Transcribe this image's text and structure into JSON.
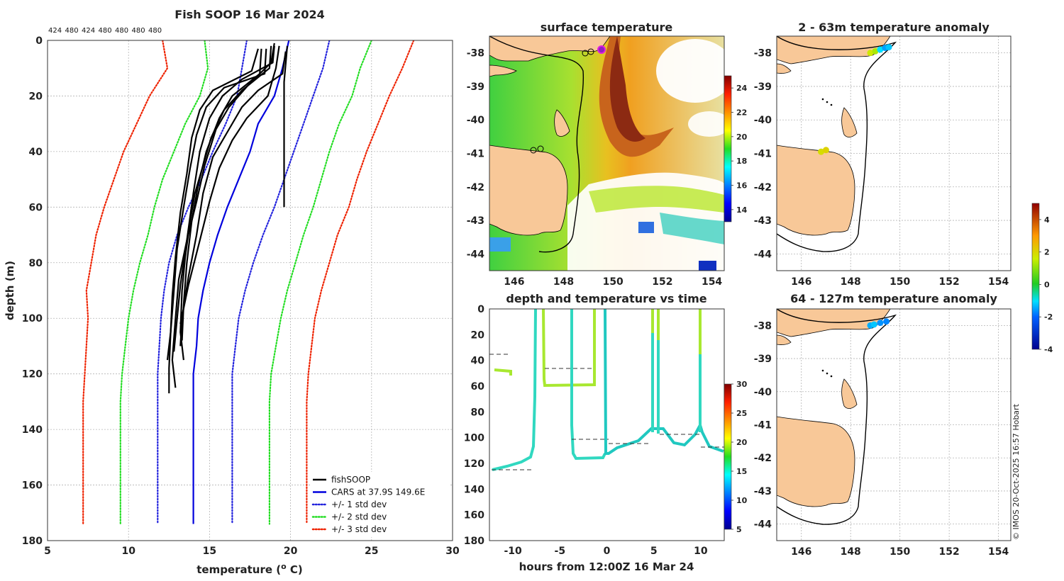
{
  "chart_data": [
    {
      "type": "line",
      "title": "Fish SOOP 16 Mar 2024",
      "top_labels": [
        "424",
        "480",
        "424",
        "480",
        "480",
        "480",
        "480"
      ],
      "xlabel": "temperature (",
      "xlabel_sup": "o",
      "xlabel_unit": " C)",
      "ylabel": "depth (m)",
      "xlim": [
        5,
        30
      ],
      "ylim": [
        180,
        0
      ],
      "xticks": [
        5,
        10,
        15,
        20,
        25,
        30
      ],
      "yticks": [
        0,
        20,
        40,
        60,
        80,
        100,
        120,
        140,
        160,
        180
      ],
      "legend": {
        "position": "bottom-right",
        "entries": [
          {
            "label": "fishSOOP",
            "color": "#000000",
            "style": "solid"
          },
          {
            "label": "CARS at 37.9S 149.6E",
            "color": "#0000dd",
            "style": "solid"
          },
          {
            "label": "+/- 1 std dev",
            "color": "#2222dd",
            "style": "dotted"
          },
          {
            "label": "+/- 2 std dev",
            "color": "#22dd22",
            "style": "dotted"
          },
          {
            "label": "+/- 3 std dev",
            "color": "#ee2200",
            "style": "dotted"
          }
        ]
      },
      "series": [
        {
          "name": "CARS",
          "color": "#0000dd",
          "style": "solid",
          "points": [
            [
              19.9,
              0
            ],
            [
              19.5,
              10
            ],
            [
              19.0,
              20
            ],
            [
              18.0,
              30
            ],
            [
              17.5,
              40
            ],
            [
              16.8,
              50
            ],
            [
              16.1,
              60
            ],
            [
              15.5,
              70
            ],
            [
              15.0,
              80
            ],
            [
              14.6,
              90
            ],
            [
              14.3,
              100
            ],
            [
              14.2,
              110
            ],
            [
              14.0,
              120
            ],
            [
              14.0,
              130
            ],
            [
              14.0,
              174
            ]
          ]
        },
        {
          "name": "+1 std",
          "color": "#2222dd",
          "style": "dotted",
          "points": [
            [
              22.4,
              0
            ],
            [
              22.0,
              10
            ],
            [
              21.4,
              20
            ],
            [
              20.8,
              30
            ],
            [
              20.2,
              40
            ],
            [
              19.6,
              50
            ],
            [
              19.0,
              60
            ],
            [
              18.3,
              70
            ],
            [
              17.7,
              80
            ],
            [
              17.2,
              90
            ],
            [
              16.8,
              100
            ],
            [
              16.6,
              110
            ],
            [
              16.4,
              120
            ],
            [
              16.4,
              130
            ],
            [
              16.4,
              174
            ]
          ]
        },
        {
          "name": "-1 std",
          "color": "#2222dd",
          "style": "dotted",
          "points": [
            [
              17.3,
              0
            ],
            [
              17.0,
              10
            ],
            [
              16.7,
              20
            ],
            [
              16.0,
              30
            ],
            [
              15.2,
              40
            ],
            [
              14.5,
              50
            ],
            [
              13.7,
              60
            ],
            [
              13.0,
              70
            ],
            [
              12.5,
              80
            ],
            [
              12.2,
              90
            ],
            [
              12.0,
              100
            ],
            [
              11.9,
              110
            ],
            [
              11.8,
              120
            ],
            [
              11.8,
              130
            ],
            [
              11.8,
              174
            ]
          ]
        },
        {
          "name": "+2 std",
          "color": "#22dd22",
          "style": "dotted",
          "points": [
            [
              25.0,
              0
            ],
            [
              24.3,
              10
            ],
            [
              23.8,
              20
            ],
            [
              23.0,
              30
            ],
            [
              22.4,
              40
            ],
            [
              21.9,
              50
            ],
            [
              21.4,
              60
            ],
            [
              20.8,
              70
            ],
            [
              20.3,
              80
            ],
            [
              19.8,
              90
            ],
            [
              19.4,
              100
            ],
            [
              19.1,
              110
            ],
            [
              18.8,
              120
            ],
            [
              18.7,
              130
            ],
            [
              18.7,
              174
            ]
          ]
        },
        {
          "name": "-2 std",
          "color": "#22dd22",
          "style": "dotted",
          "points": [
            [
              14.7,
              0
            ],
            [
              14.9,
              10
            ],
            [
              14.4,
              20
            ],
            [
              13.5,
              30
            ],
            [
              12.8,
              40
            ],
            [
              12.1,
              50
            ],
            [
              11.6,
              60
            ],
            [
              11.2,
              70
            ],
            [
              10.7,
              80
            ],
            [
              10.3,
              90
            ],
            [
              10.0,
              100
            ],
            [
              9.8,
              110
            ],
            [
              9.6,
              120
            ],
            [
              9.5,
              130
            ],
            [
              9.5,
              174
            ]
          ]
        },
        {
          "name": "+3 std",
          "color": "#ee2200",
          "style": "dotted",
          "points": [
            [
              27.6,
              0
            ],
            [
              26.9,
              10
            ],
            [
              26.1,
              20
            ],
            [
              25.4,
              30
            ],
            [
              24.7,
              40
            ],
            [
              24.1,
              50
            ],
            [
              23.6,
              60
            ],
            [
              22.9,
              70
            ],
            [
              22.4,
              80
            ],
            [
              21.9,
              90
            ],
            [
              21.5,
              100
            ],
            [
              21.3,
              110
            ],
            [
              21.1,
              120
            ],
            [
              21.0,
              130
            ],
            [
              21.0,
              174
            ]
          ]
        },
        {
          "name": "-3 std",
          "color": "#ee2200",
          "style": "dotted",
          "points": [
            [
              12.1,
              0
            ],
            [
              12.4,
              10
            ],
            [
              11.3,
              20
            ],
            [
              10.5,
              30
            ],
            [
              9.7,
              40
            ],
            [
              9.1,
              50
            ],
            [
              8.5,
              60
            ],
            [
              8.0,
              70
            ],
            [
              7.7,
              80
            ],
            [
              7.4,
              90
            ],
            [
              7.5,
              100
            ],
            [
              7.4,
              110
            ],
            [
              7.3,
              120
            ],
            [
              7.2,
              130
            ],
            [
              7.2,
              174
            ]
          ]
        },
        {
          "name": "fishSOOP-1",
          "color": "#000000",
          "style": "solid",
          "points": [
            [
              19.8,
              2
            ],
            [
              19.6,
              15
            ],
            [
              19.6,
              30
            ],
            [
              19.6,
              45
            ],
            [
              19.6,
              60
            ]
          ]
        },
        {
          "name": "fishSOOP-2",
          "color": "#000000",
          "style": "solid",
          "points": [
            [
              18.8,
              2
            ],
            [
              18.7,
              10
            ],
            [
              17.0,
              18
            ],
            [
              15.9,
              25
            ],
            [
              15.1,
              35
            ],
            [
              14.6,
              45
            ],
            [
              14.1,
              55
            ],
            [
              13.8,
              65
            ],
            [
              13.5,
              78
            ],
            [
              13.3,
              90
            ],
            [
              13.2,
              105
            ],
            [
              13.4,
              115
            ]
          ]
        },
        {
          "name": "fishSOOP-3",
          "color": "#000000",
          "style": "solid",
          "points": [
            [
              18.2,
              3
            ],
            [
              18.1,
              12
            ],
            [
              16.4,
              20
            ],
            [
              15.6,
              28
            ],
            [
              14.8,
              40
            ],
            [
              14.3,
              52
            ],
            [
              13.9,
              65
            ],
            [
              13.6,
              80
            ],
            [
              13.4,
              95
            ],
            [
              13.3,
              108
            ]
          ]
        },
        {
          "name": "fishSOOP-4",
          "color": "#000000",
          "style": "solid",
          "points": [
            [
              19.0,
              1
            ],
            [
              18.8,
              8
            ],
            [
              17.4,
              16
            ],
            [
              16.2,
              24
            ],
            [
              15.4,
              32
            ],
            [
              14.7,
              45
            ],
            [
              14.2,
              58
            ],
            [
              13.6,
              72
            ],
            [
              13.1,
              86
            ],
            [
              12.9,
              100
            ],
            [
              12.7,
              115
            ],
            [
              12.9,
              125
            ]
          ]
        },
        {
          "name": "fishSOOP-5",
          "color": "#000000",
          "style": "solid",
          "points": [
            [
              18.5,
              3
            ],
            [
              18.4,
              12
            ],
            [
              15.9,
              17
            ],
            [
              14.8,
              24
            ],
            [
              14.2,
              34
            ],
            [
              13.8,
              46
            ],
            [
              13.4,
              60
            ],
            [
              13.0,
              75
            ],
            [
              12.8,
              90
            ],
            [
              12.6,
              105
            ],
            [
              12.5,
              118
            ],
            [
              12.5,
              127
            ]
          ]
        },
        {
          "name": "fishSOOP-6",
          "color": "#000000",
          "style": "solid",
          "points": [
            [
              19.7,
              4
            ],
            [
              19.5,
              12
            ],
            [
              18.0,
              18
            ],
            [
              17.0,
              24
            ],
            [
              16.2,
              32
            ],
            [
              15.2,
              42
            ],
            [
              14.6,
              55
            ],
            [
              14.2,
              70
            ],
            [
              13.7,
              85
            ],
            [
              13.3,
              100
            ],
            [
              13.2,
              110
            ]
          ]
        },
        {
          "name": "fishSOOP-7",
          "color": "#000000",
          "style": "solid",
          "points": [
            [
              18.0,
              3
            ],
            [
              17.6,
              11
            ],
            [
              15.2,
              18
            ],
            [
              14.4,
              25
            ],
            [
              13.9,
              35
            ],
            [
              13.6,
              48
            ],
            [
              13.2,
              62
            ],
            [
              12.9,
              78
            ],
            [
              12.7,
              92
            ],
            [
              12.6,
              105
            ],
            [
              12.4,
              115
            ]
          ]
        },
        {
          "name": "fishSOOP-8",
          "color": "#000000",
          "style": "solid",
          "points": [
            [
              19.0,
              2
            ],
            [
              18.9,
              8
            ],
            [
              17.0,
              14
            ],
            [
              15.8,
              20
            ],
            [
              15.0,
              28
            ],
            [
              14.4,
              40
            ],
            [
              14.0,
              55
            ],
            [
              13.6,
              72
            ],
            [
              13.2,
              88
            ],
            [
              13.0,
              100
            ],
            [
              12.8,
              112
            ]
          ]
        },
        {
          "name": "fishSOOP-9",
          "color": "#000000",
          "style": "solid",
          "points": [
            [
              19.3,
              2
            ],
            [
              19.1,
              10
            ],
            [
              18.6,
              20
            ],
            [
              17.3,
              28
            ],
            [
              16.4,
              36
            ],
            [
              15.6,
              46
            ],
            [
              15.0,
              58
            ],
            [
              14.4,
              72
            ],
            [
              13.7,
              88
            ],
            [
              13.2,
              102
            ]
          ]
        }
      ]
    },
    {
      "type": "heatmap",
      "title": "surface temperature",
      "xlim": [
        145,
        154.5
      ],
      "ylim": [
        -44.5,
        -37.5
      ],
      "xticks": [
        146,
        148,
        150,
        152,
        154
      ],
      "yticks": [
        -38,
        -39,
        -40,
        -41,
        -42,
        -43,
        -44
      ],
      "colorbar": {
        "min": 13,
        "max": 25,
        "ticks": [
          14,
          16,
          18,
          20,
          22,
          24
        ]
      }
    },
    {
      "type": "scatter",
      "title": "depth and temperature vs time",
      "xlabel": "hours from 12:00Z 16 Mar 24",
      "xlim": [
        -12.5,
        12.5
      ],
      "ylim": [
        180,
        0
      ],
      "xticks": [
        -10,
        -5,
        0,
        5,
        10
      ],
      "yticks": [
        0,
        20,
        40,
        60,
        80,
        100,
        120,
        140,
        160,
        180
      ],
      "colorbar": {
        "min": 5,
        "max": 30,
        "ticks": [
          5,
          10,
          15,
          20,
          25,
          30
        ]
      }
    },
    {
      "type": "scatter",
      "title": "2 - 63m temperature anomaly",
      "xlim": [
        145,
        154.5
      ],
      "ylim": [
        -44.5,
        -37.5
      ],
      "xticks": [
        146,
        148,
        150,
        152,
        154
      ],
      "yticks": [
        -38,
        -39,
        -40,
        -41,
        -42,
        -43,
        -44
      ],
      "points": [
        [
          148.8,
          -38.0,
          1.6
        ],
        [
          149.0,
          -37.95,
          1.2
        ],
        [
          149.2,
          -37.9,
          -1.0
        ],
        [
          149.4,
          -37.85,
          -1.5
        ],
        [
          149.55,
          -37.83,
          -1.2
        ],
        [
          146.8,
          -40.95,
          1.8
        ],
        [
          147.0,
          -40.9,
          2.0
        ]
      ]
    },
    {
      "type": "scatter",
      "title": "64 - 127m temperature anomaly",
      "xlim": [
        145,
        154.5
      ],
      "ylim": [
        -44.5,
        -37.5
      ],
      "xticks": [
        146,
        148,
        150,
        152,
        154
      ],
      "yticks": [
        -38,
        -39,
        -40,
        -41,
        -42,
        -43,
        -44
      ],
      "points": [
        [
          148.8,
          -38.0,
          -1.4
        ],
        [
          148.95,
          -37.97,
          -1.2
        ],
        [
          149.2,
          -37.92,
          -1.6
        ],
        [
          149.45,
          -37.88,
          -1.7
        ]
      ],
      "colorbar": {
        "min": -4,
        "max": 5,
        "ticks": [
          -4,
          -2,
          0,
          2,
          4
        ]
      }
    }
  ],
  "footer": {
    "credit": "© IMOS 20-Oct-2025 16:57 Hobart"
  }
}
